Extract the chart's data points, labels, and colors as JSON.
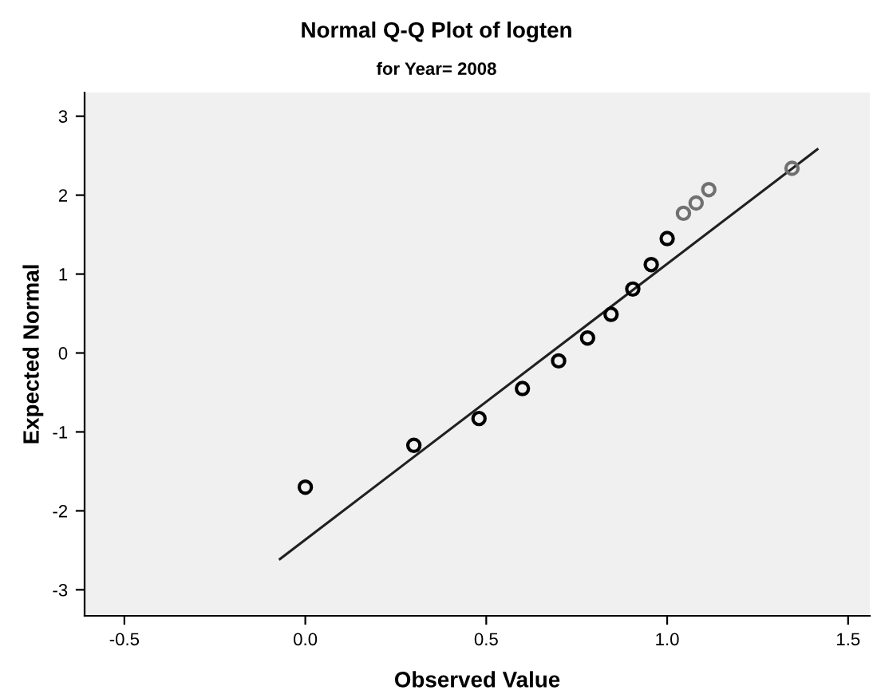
{
  "chart_data": {
    "type": "scatter",
    "title": "Normal Q-Q Plot of logten",
    "subtitle": "for Year= 2008",
    "xlabel": "Observed Value",
    "ylabel": "Expected Normal",
    "xlim": [
      -0.61,
      1.56
    ],
    "xticks": [
      {
        "value": -0.5,
        "label": "-0.5"
      },
      {
        "value": 0,
        "label": "0.0"
      },
      {
        "value": 0.5,
        "label": "0.5"
      },
      {
        "value": 1,
        "label": "1.0"
      },
      {
        "value": 1.5,
        "label": "1.5"
      }
    ],
    "ylim": [
      -3.33,
      3.3
    ],
    "yticks": [
      -3,
      -2,
      -1,
      0,
      1,
      2,
      3
    ],
    "grid": false,
    "series": [
      {
        "marker": "circle",
        "x": [
          0.0,
          0.3,
          0.48,
          0.6,
          0.7,
          0.78,
          0.845,
          0.905,
          0.956,
          1.0,
          1.045,
          1.08,
          1.115,
          1.345
        ],
        "values": [
          -1.7,
          -1.17,
          -0.83,
          -0.45,
          -0.1,
          0.19,
          0.49,
          0.81,
          1.12,
          1.45,
          1.77,
          1.9,
          2.07,
          2.34
        ],
        "colors": [
          "#000000",
          "#000000",
          "#000000",
          "#000000",
          "#000000",
          "#000000",
          "#000000",
          "#000000",
          "#000000",
          "#000000",
          "#707070",
          "#707070",
          "#707070",
          "#707070"
        ]
      },
      {
        "type": "line",
        "x": [
          -0.07,
          1.415
        ],
        "values": [
          -2.61,
          2.58
        ],
        "color": "#202020"
      }
    ]
  }
}
